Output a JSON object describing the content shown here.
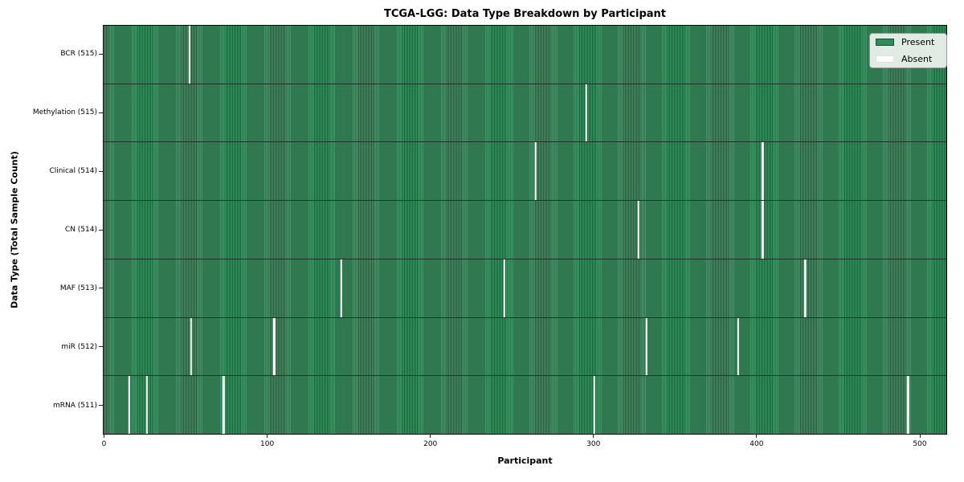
{
  "colors": {
    "present": "#2e8b57",
    "present_stripe_light": "#3f9566",
    "present_stripe_dark": "#205c3a",
    "absent": "#ffffff",
    "row_separator": "#1b3526",
    "legend_bg": "rgba(240,245,240,0.92)"
  },
  "legend": {
    "present_label": "Present",
    "absent_label": "Absent"
  },
  "chart_data": {
    "type": "heatmap",
    "title": "TCGA-LGG: Data Type Breakdown by Participant",
    "xlabel": "Participant",
    "ylabel": "Data Type (Total Sample Count)",
    "legend": [
      "Present",
      "Absent"
    ],
    "x_ticks": [
      0,
      100,
      200,
      300,
      400,
      500
    ],
    "x_range": [
      0,
      516
    ],
    "total_participants": 516,
    "grid": false,
    "legend_position": "upper right",
    "rows": [
      {
        "data_type": "BCR",
        "label": "BCR (515)",
        "present_count": 515,
        "absent_participants": [
          52
        ]
      },
      {
        "data_type": "Methylation",
        "label": "Methylation (515)",
        "present_count": 515,
        "absent_participants": [
          295
        ]
      },
      {
        "data_type": "Clinical",
        "label": "Clinical (514)",
        "present_count": 514,
        "absent_participants": [
          264,
          403
        ]
      },
      {
        "data_type": "CN",
        "label": "CN (514)",
        "present_count": 514,
        "absent_participants": [
          327,
          403
        ]
      },
      {
        "data_type": "MAF",
        "label": "MAF (513)",
        "present_count": 513,
        "absent_participants": [
          145,
          245,
          429
        ]
      },
      {
        "data_type": "miR",
        "label": "miR (512)",
        "present_count": 512,
        "absent_participants": [
          53,
          104,
          332,
          388
        ]
      },
      {
        "data_type": "mRNA",
        "label": "mRNA (511)",
        "present_count": 511,
        "absent_participants": [
          15,
          26,
          73,
          300,
          492
        ]
      }
    ]
  }
}
